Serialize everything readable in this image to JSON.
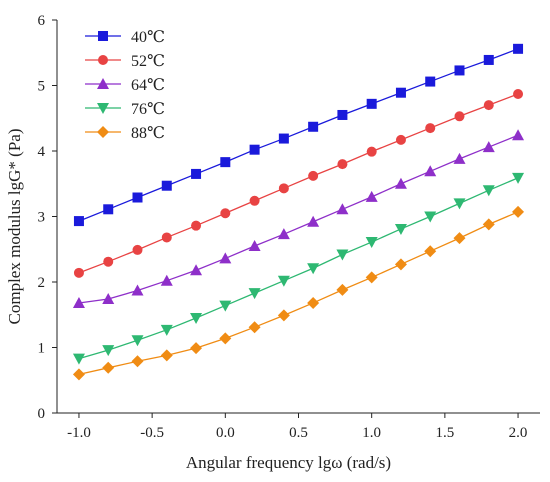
{
  "chart_data": {
    "type": "line",
    "title": "",
    "xlabel": "Angular frequency lgω (rad/s)",
    "ylabel": "Complex modulus lgG* (Pa)",
    "xlim": [
      -1.15,
      2.15
    ],
    "ylim": [
      0,
      6
    ],
    "x_ticks": [
      -1.0,
      -0.5,
      0.0,
      0.5,
      1.0,
      1.5,
      2.0
    ],
    "x_tick_labels": [
      "-1.0",
      "-0.5",
      "0.0",
      "0.5",
      "1.0",
      "1.5",
      "2.0"
    ],
    "y_ticks": [
      0,
      1,
      2,
      3,
      4,
      5,
      6
    ],
    "y_tick_labels": [
      "0",
      "1",
      "2",
      "3",
      "4",
      "5",
      "6"
    ],
    "grid": false,
    "legend_position": "top-left",
    "x": [
      -1.0,
      -0.8,
      -0.6,
      -0.4,
      -0.2,
      0.0,
      0.2,
      0.4,
      0.6,
      0.8,
      1.0,
      1.2,
      1.4,
      1.6,
      1.8,
      2.0
    ],
    "series": [
      {
        "name": "40℃",
        "color": "#1a1adb",
        "marker": "square",
        "values": [
          2.93,
          3.11,
          3.29,
          3.47,
          3.65,
          3.83,
          4.02,
          4.19,
          4.37,
          4.55,
          4.72,
          4.89,
          5.06,
          5.23,
          5.39,
          5.56
        ]
      },
      {
        "name": "52℃",
        "color": "#e84343",
        "marker": "circle",
        "values": [
          2.14,
          2.31,
          2.49,
          2.68,
          2.86,
          3.05,
          3.24,
          3.43,
          3.62,
          3.8,
          3.99,
          4.17,
          4.35,
          4.53,
          4.7,
          4.87
        ]
      },
      {
        "name": "64℃",
        "color": "#8e2fc9",
        "marker": "triangle-up",
        "values": [
          1.68,
          1.74,
          1.87,
          2.02,
          2.18,
          2.36,
          2.55,
          2.73,
          2.92,
          3.11,
          3.3,
          3.5,
          3.69,
          3.88,
          4.06,
          4.24
        ]
      },
      {
        "name": "76℃",
        "color": "#2eb872",
        "marker": "triangle-down",
        "values": [
          0.83,
          0.96,
          1.11,
          1.27,
          1.45,
          1.64,
          1.83,
          2.02,
          2.21,
          2.42,
          2.61,
          2.81,
          3.0,
          3.2,
          3.4,
          3.59
        ]
      },
      {
        "name": "88℃",
        "color": "#f08c14",
        "marker": "diamond",
        "values": [
          0.59,
          0.69,
          0.79,
          0.88,
          0.99,
          1.14,
          1.31,
          1.49,
          1.68,
          1.88,
          2.07,
          2.27,
          2.47,
          2.67,
          2.88,
          3.07
        ]
      }
    ]
  }
}
